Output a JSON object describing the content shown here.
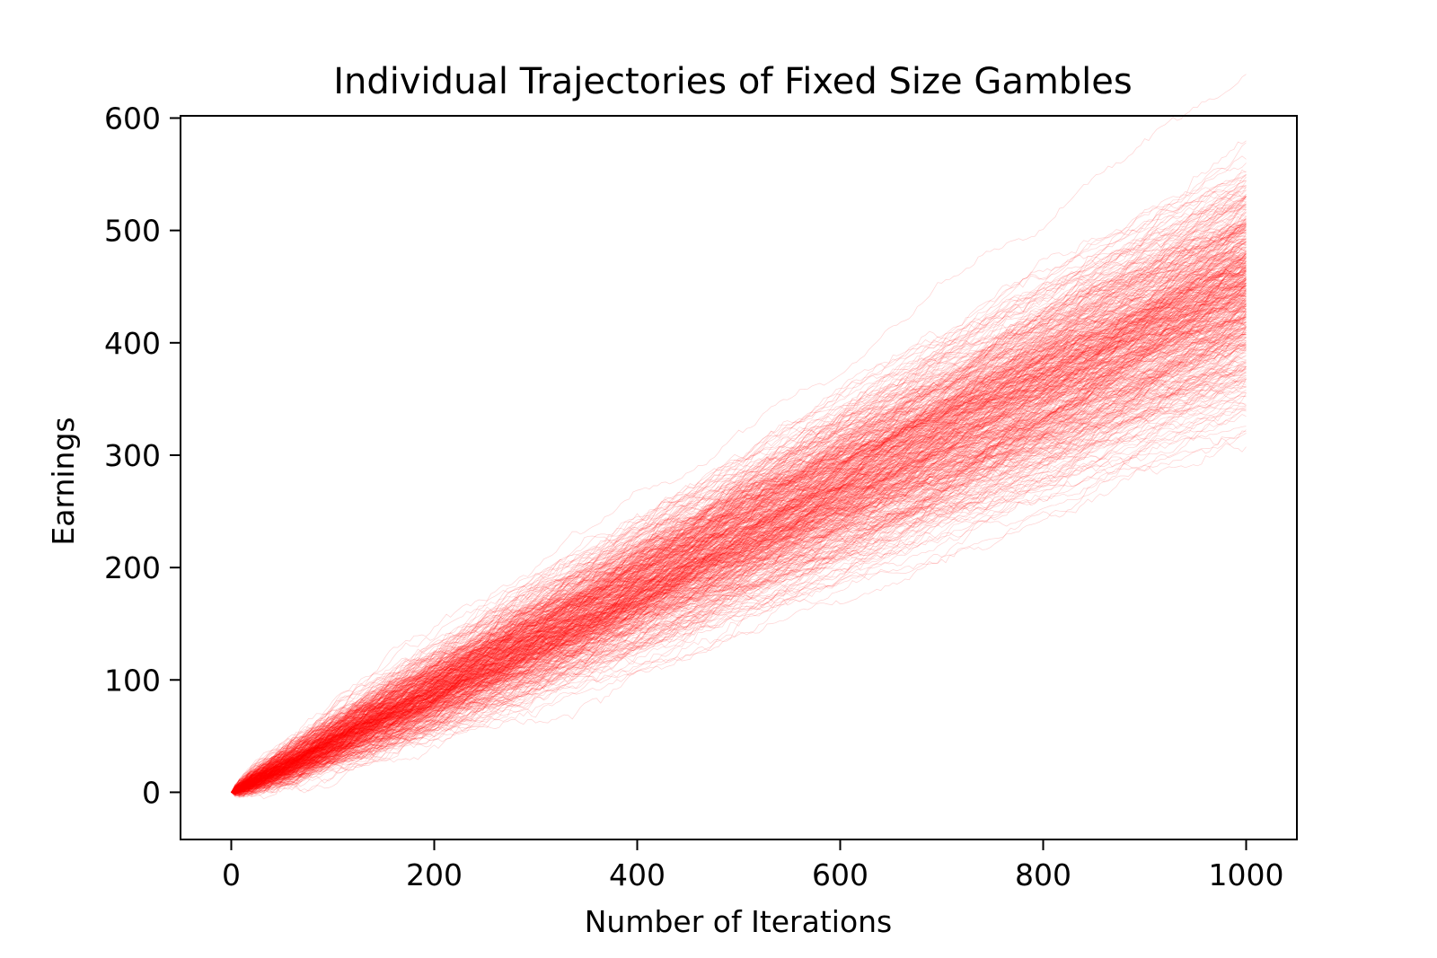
{
  "chart_data": {
    "type": "line",
    "title": "Individual Trajectories of Fixed Size Gambles",
    "xlabel": "Number of Iterations",
    "ylabel": "Earnings",
    "xlim": [
      -50,
      1050
    ],
    "ylim": [
      -42,
      602
    ],
    "x_ticks": [
      0,
      200,
      400,
      600,
      800,
      1000
    ],
    "y_ticks": [
      0,
      100,
      200,
      300,
      400,
      500,
      600
    ],
    "grid": false,
    "legend": "none",
    "line_color": "#ff0000",
    "trajectory_count": 500,
    "x_range": [
      0,
      1000
    ],
    "end_value_range": [
      338,
      572
    ],
    "band_summary": {
      "x": [
        0,
        200,
        400,
        600,
        800,
        1000
      ],
      "y_mean": [
        0,
        90,
        180,
        270,
        360,
        450
      ],
      "y_max": [
        0,
        125,
        230,
        330,
        460,
        572
      ],
      "y_min": [
        0,
        55,
        125,
        190,
        270,
        338
      ]
    }
  }
}
